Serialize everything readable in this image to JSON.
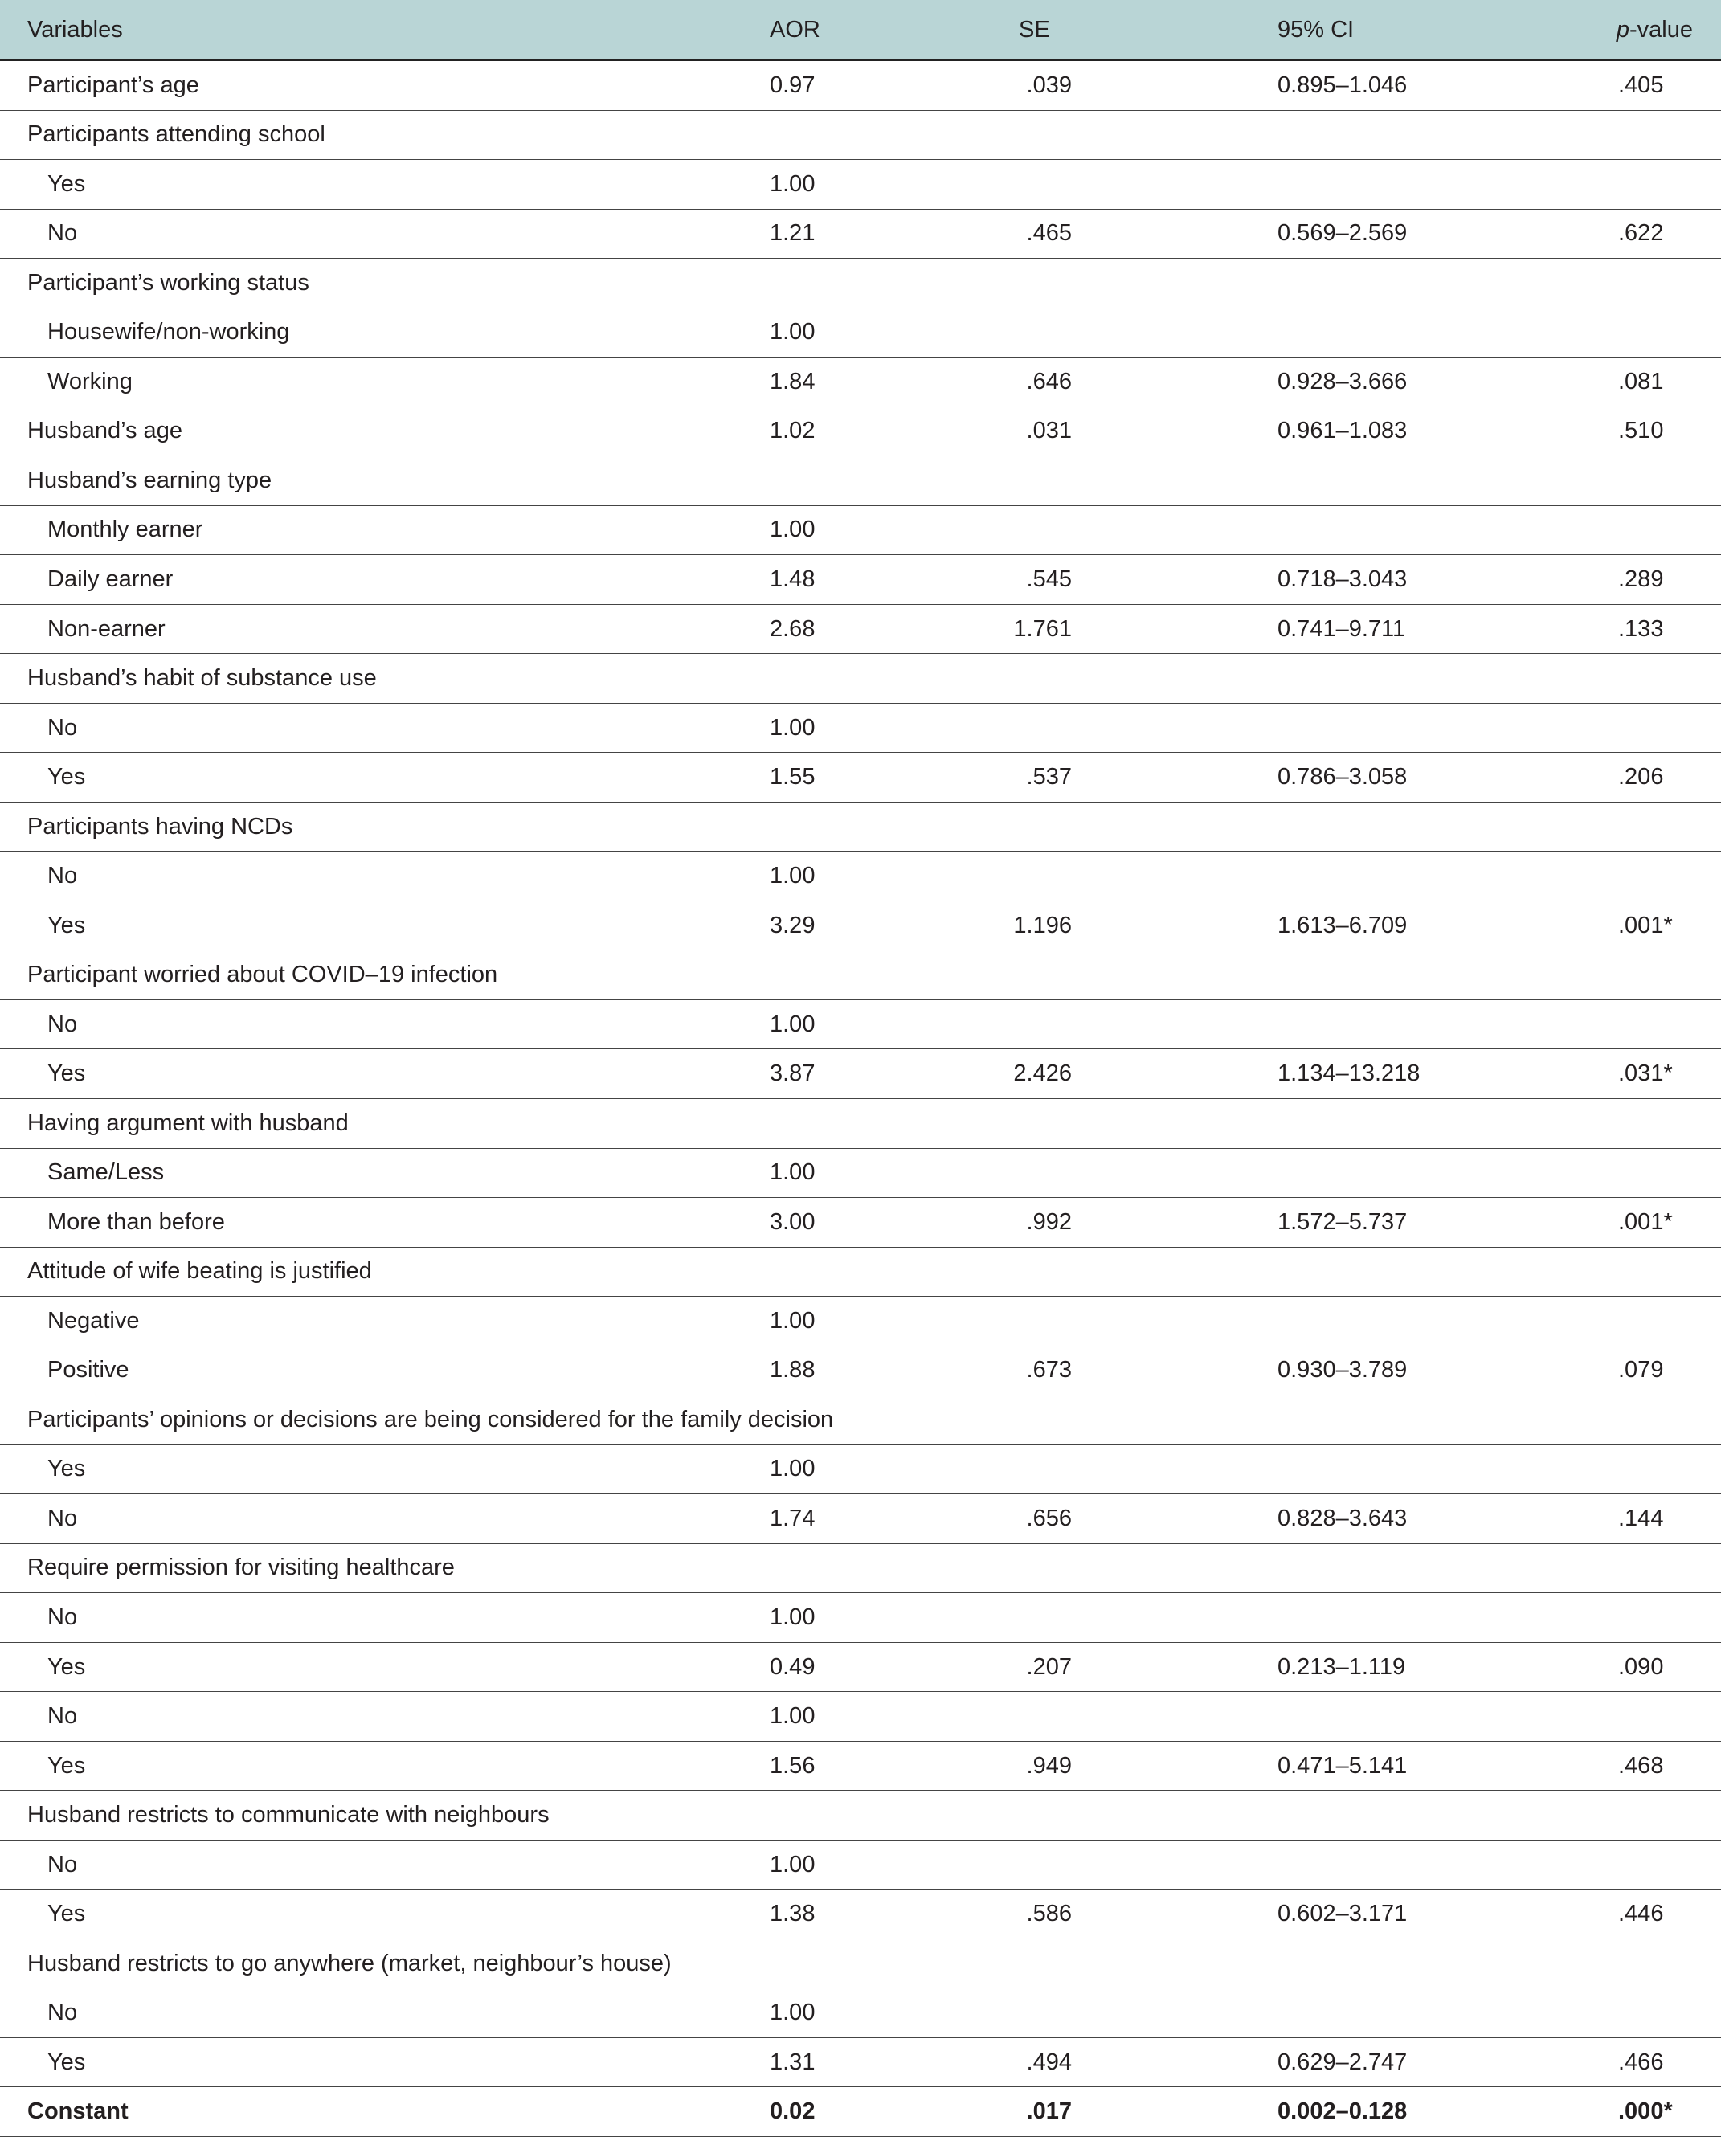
{
  "table": {
    "header": [
      "Variables",
      "AOR",
      "SE",
      "95% CI",
      [
        "p",
        "-value"
      ]
    ],
    "rows": [
      [
        "Participant’s age",
        "0.97",
        ".039",
        "0.895–1.046",
        ".405"
      ],
      {
        "label": "Participants attending school",
        "items": [
          [
            "Yes",
            "1.00"
          ],
          [
            "No",
            "1.21",
            ".465",
            "0.569–2.569",
            ".622"
          ]
        ]
      },
      {
        "label": "Participant’s working status",
        "items": [
          [
            "Housewife/non-working",
            "1.00"
          ],
          [
            "Working",
            "1.84",
            ".646",
            "0.928–3.666",
            ".081"
          ]
        ]
      },
      [
        "Husband’s age",
        "1.02",
        ".031",
        "0.961–1.083",
        ".510"
      ],
      {
        "label": "Husband’s earning type",
        "items": [
          [
            "Monthly earner",
            "1.00"
          ],
          [
            "Daily earner",
            "1.48",
            ".545",
            "0.718–3.043",
            ".289"
          ],
          [
            "Non-earner",
            "2.68",
            "1.761",
            "0.741–9.711",
            ".133"
          ]
        ]
      },
      {
        "label": "Husband’s habit of substance use",
        "items": [
          [
            "No",
            "1.00"
          ],
          [
            "Yes",
            "1.55",
            ".537",
            "0.786–3.058",
            ".206"
          ]
        ]
      },
      {
        "label": "Participants having NCDs",
        "items": [
          [
            "No",
            "1.00"
          ],
          [
            "Yes",
            "3.29",
            "1.196",
            "1.613–6.709",
            ".001*"
          ]
        ]
      },
      {
        "label": "Participant worried about COVID–19 infection",
        "items": [
          [
            "No",
            "1.00"
          ],
          [
            "Yes",
            "3.87",
            "2.426",
            "1.134–13.218",
            ".031*"
          ]
        ]
      },
      {
        "label": "Having argument with husband",
        "items": [
          [
            "Same/Less",
            "1.00"
          ],
          [
            "More than before",
            "3.00",
            ".992",
            "1.572–5.737",
            ".001*"
          ]
        ]
      },
      {
        "label": "Attitude of wife beating is justified",
        "items": [
          [
            "Negative",
            "1.00"
          ],
          [
            "Positive",
            "1.88",
            ".673",
            "0.930–3.789",
            ".079"
          ]
        ]
      },
      {
        "label": "Participants’ opinions or decisions are being considered for the family decision",
        "items": [
          [
            "Yes",
            "1.00"
          ],
          [
            "No",
            "1.74",
            ".656",
            "0.828–3.643",
            ".144"
          ]
        ]
      },
      {
        "label": "Require permission for visiting healthcare",
        "items": [
          [
            "No",
            "1.00"
          ],
          [
            "Yes",
            "0.49",
            ".207",
            "0.213–1.119",
            ".090"
          ],
          [
            "No",
            "1.00"
          ],
          [
            "Yes",
            "1.56",
            ".949",
            "0.471–5.141",
            ".468"
          ]
        ]
      },
      {
        "label": "Husband restricts to communicate with neighbours",
        "items": [
          [
            "No",
            "1.00"
          ],
          [
            "Yes",
            "1.38",
            ".586",
            "0.602–3.171",
            ".446"
          ]
        ]
      },
      {
        "label": "Husband restricts to go anywhere (market, neighbour’s house)",
        "items": [
          [
            "No",
            "1.00"
          ],
          [
            "Yes",
            "1.31",
            ".494",
            "0.629–2.747",
            ".466"
          ]
        ]
      },
      [
        "Constant",
        "0.02",
        ".017",
        "0.002–0.128",
        ".000*"
      ]
    ]
  }
}
